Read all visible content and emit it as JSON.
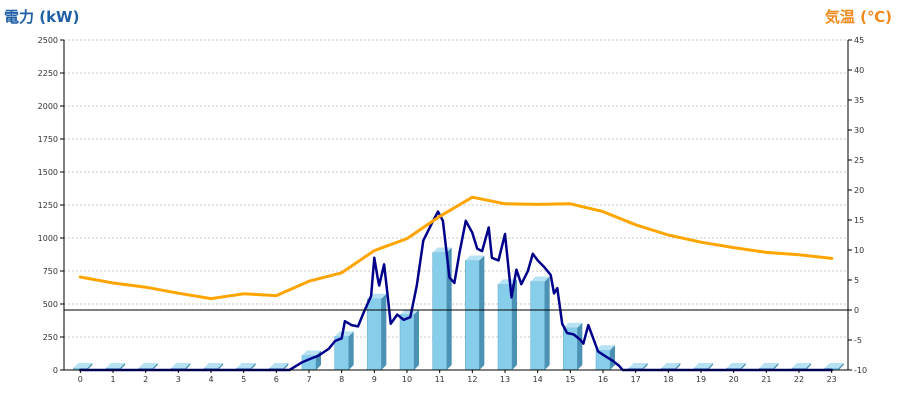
{
  "chart_data": {
    "type": "bar+line",
    "y_left_label": "電力 (kW)",
    "y_right_label": "気温 (℃)",
    "x_ticks": [
      "0",
      "1",
      "2",
      "3",
      "4",
      "5",
      "6",
      "7",
      "8",
      "9",
      "10",
      "11",
      "12",
      "13",
      "14",
      "15",
      "16",
      "17",
      "18",
      "19",
      "20",
      "21",
      "22",
      "23"
    ],
    "y_left_ticks": [
      "0",
      "250",
      "500",
      "750",
      "1000",
      "1250",
      "1500",
      "1750",
      "2000",
      "2250",
      "2500"
    ],
    "y_right_ticks": [
      "-10",
      "-5",
      "0",
      "5",
      "10",
      "15",
      "20",
      "25",
      "30",
      "35",
      "40",
      "45"
    ],
    "ylim_left": [
      0,
      2500
    ],
    "ylim_right": [
      -10,
      45
    ],
    "grid": true,
    "series": [
      {
        "kind": "bar",
        "axis": "left",
        "color": "#87ceeb",
        "values": [
          15,
          15,
          15,
          15,
          15,
          15,
          15,
          110,
          255,
          540,
          420,
          890,
          830,
          650,
          670,
          320,
          150,
          15,
          15,
          15,
          15,
          15,
          15,
          15
        ]
      },
      {
        "kind": "line",
        "axis": "left",
        "color": "#00008b",
        "points": [
          [
            0,
            0
          ],
          [
            6.4,
            0
          ],
          [
            6.8,
            60
          ],
          [
            7.0,
            80
          ],
          [
            7.3,
            110
          ],
          [
            7.6,
            160
          ],
          [
            7.8,
            220
          ],
          [
            8.0,
            240
          ],
          [
            8.1,
            370
          ],
          [
            8.3,
            340
          ],
          [
            8.5,
            330
          ],
          [
            8.7,
            450
          ],
          [
            8.9,
            560
          ],
          [
            9.0,
            850
          ],
          [
            9.1,
            700
          ],
          [
            9.15,
            640
          ],
          [
            9.3,
            800
          ],
          [
            9.4,
            580
          ],
          [
            9.5,
            350
          ],
          [
            9.7,
            420
          ],
          [
            9.9,
            380
          ],
          [
            10.1,
            400
          ],
          [
            10.3,
            640
          ],
          [
            10.5,
            980
          ],
          [
            10.8,
            1130
          ],
          [
            10.95,
            1200
          ],
          [
            11.1,
            1130
          ],
          [
            11.3,
            700
          ],
          [
            11.45,
            660
          ],
          [
            11.6,
            880
          ],
          [
            11.8,
            1130
          ],
          [
            12.0,
            1040
          ],
          [
            12.15,
            920
          ],
          [
            12.3,
            900
          ],
          [
            12.5,
            1080
          ],
          [
            12.6,
            850
          ],
          [
            12.8,
            830
          ],
          [
            13.0,
            1030
          ],
          [
            13.2,
            550
          ],
          [
            13.35,
            760
          ],
          [
            13.5,
            650
          ],
          [
            13.7,
            750
          ],
          [
            13.85,
            880
          ],
          [
            14.0,
            830
          ],
          [
            14.2,
            780
          ],
          [
            14.4,
            720
          ],
          [
            14.5,
            580
          ],
          [
            14.6,
            620
          ],
          [
            14.75,
            350
          ],
          [
            14.9,
            280
          ],
          [
            15.1,
            270
          ],
          [
            15.3,
            230
          ],
          [
            15.4,
            200
          ],
          [
            15.55,
            340
          ],
          [
            15.7,
            240
          ],
          [
            15.85,
            140
          ],
          [
            16.1,
            100
          ],
          [
            16.3,
            70
          ],
          [
            16.5,
            30
          ],
          [
            16.6,
            0
          ],
          [
            23,
            0
          ]
        ]
      },
      {
        "kind": "line",
        "axis": "right",
        "color": "#ffa500",
        "points": [
          [
            0,
            5.5
          ],
          [
            1,
            4.5
          ],
          [
            2,
            3.8
          ],
          [
            3,
            2.8
          ],
          [
            4,
            1.9
          ],
          [
            5,
            2.7
          ],
          [
            6,
            2.4
          ],
          [
            7,
            4.8
          ],
          [
            8,
            6.2
          ],
          [
            9,
            9.9
          ],
          [
            10,
            11.9
          ],
          [
            11,
            15.6
          ],
          [
            12,
            18.8
          ],
          [
            13,
            17.7
          ],
          [
            14,
            17.6
          ],
          [
            15,
            17.7
          ],
          [
            16,
            16.4
          ],
          [
            17,
            14.2
          ],
          [
            18,
            12.5
          ],
          [
            19,
            11.3
          ],
          [
            20,
            10.4
          ],
          [
            21,
            9.6
          ],
          [
            22,
            9.2
          ],
          [
            23,
            8.6
          ]
        ]
      }
    ]
  }
}
